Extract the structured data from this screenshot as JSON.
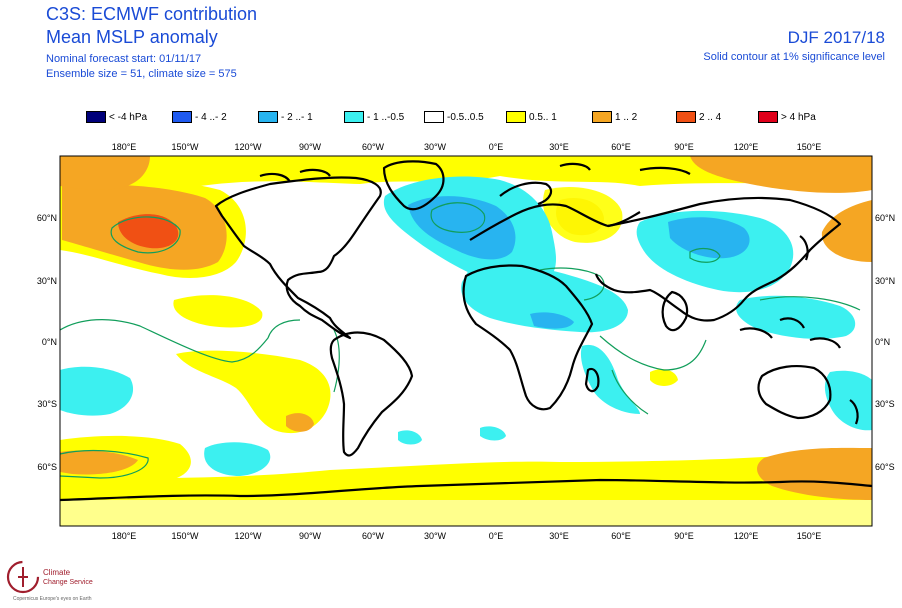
{
  "header": {
    "title": "C3S: ECMWF contribution",
    "subtitle": "Mean MSLP anomaly",
    "forecast_start": "Nominal forecast start: 01/11/17",
    "ensemble": "Ensemble size = 51, climate size = 575",
    "season": "DJF 2017/18",
    "significance": "Solid contour at 1% significance level"
  },
  "legend": [
    {
      "label": "< -4 hPa",
      "color": "#00007a"
    },
    {
      "label": "- 4 ..- 2",
      "color": "#1f5af0"
    },
    {
      "label": "- 2 ..- 1",
      "color": "#28b4f0"
    },
    {
      "label": "- 1 ..-0.5",
      "color": "#3cf0f0"
    },
    {
      "label": "-0.5..0.5",
      "color": "#ffffff"
    },
    {
      "label": "0.5.. 1",
      "color": "#ffff00"
    },
    {
      "label": "1 .. 2",
      "color": "#f5a623"
    },
    {
      "label": "2 .. 4",
      "color": "#f05014"
    },
    {
      "label": "> 4 hPa",
      "color": "#e0001a"
    }
  ],
  "axes": {
    "lon_top": [
      "180°E",
      "150°W",
      "120°W",
      "90°W",
      "60°W",
      "30°W",
      "0°E",
      "30°E",
      "60°E",
      "90°E",
      "120°E",
      "150°E"
    ],
    "lon_bottom": [
      "180°E",
      "150°W",
      "120°W",
      "90°W",
      "60°W",
      "30°W",
      "0°E",
      "30°E",
      "60°E",
      "90°E",
      "120°E",
      "150°E"
    ],
    "lat_left": [
      "60°N",
      "30°N",
      "0°N",
      "30°S",
      "60°S"
    ],
    "lat_right": [
      "60°N",
      "30°N",
      "0°N",
      "30°S",
      "60°S"
    ]
  },
  "logo": {
    "line1": "Climate",
    "line2": "Change Service",
    "line3": "Copernicus Europe's eyes on Earth"
  },
  "colors": {
    "title_blue": "#1a4bd6",
    "coast": "#000000",
    "sig_contour": "#119e5b"
  }
}
